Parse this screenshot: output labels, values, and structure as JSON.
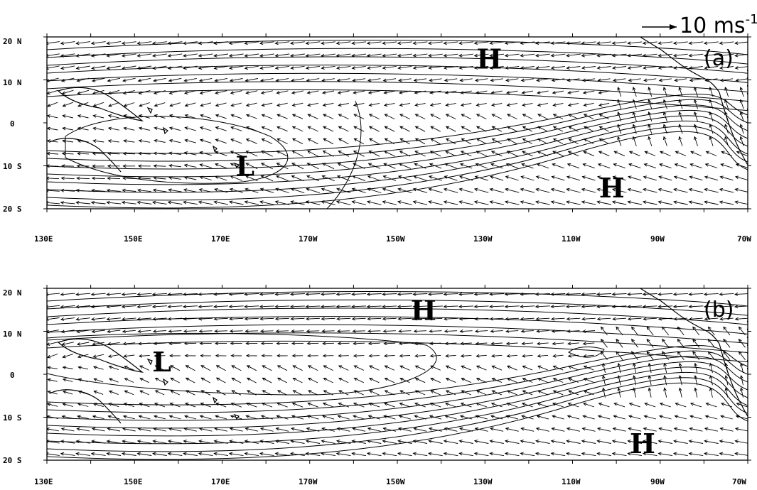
{
  "scale_vector": {
    "label": "10 ms",
    "exponent": "-1"
  },
  "x_tick_labels": [
    "130E",
    "150E",
    "170E",
    "170W",
    "150W",
    "130W",
    "110W",
    "90W",
    "70W"
  ],
  "y_tick_labels": [
    "20 N",
    "10 N",
    "0",
    "10 S",
    "20 S"
  ],
  "panels": [
    {
      "tag": "(a)",
      "centers": [
        {
          "label": "H",
          "lon": -130,
          "lat": 15
        },
        {
          "label": "L",
          "lon": 175,
          "lat": -10
        },
        {
          "label": "H",
          "lon": -102,
          "lat": -15
        }
      ]
    },
    {
      "tag": "(b)",
      "centers": [
        {
          "label": "H",
          "lon": -145,
          "lat": 15
        },
        {
          "label": "L",
          "lon": 156,
          "lat": 3
        },
        {
          "label": "H",
          "lon": -95,
          "lat": -16
        }
      ]
    }
  ],
  "colors": {
    "ink": "#000000",
    "background": "#ffffff"
  }
}
